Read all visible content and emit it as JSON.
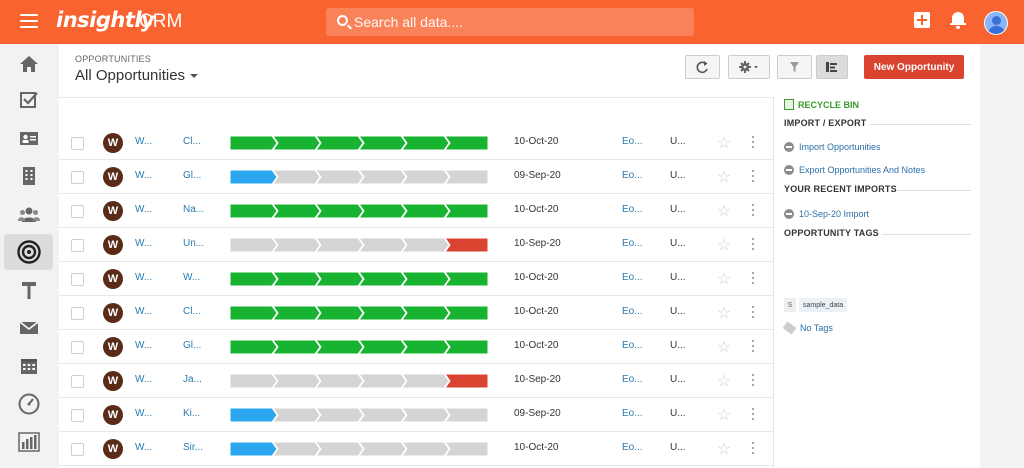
{
  "topbar": {
    "logo": "insightly",
    "app_name": "CRM",
    "search_placeholder": "Search all data...."
  },
  "sidebar": {
    "items": [
      {
        "name": "home-icon"
      },
      {
        "name": "tasks-icon"
      },
      {
        "name": "contacts-icon"
      },
      {
        "name": "organizations-icon"
      },
      {
        "name": "users-icon"
      },
      {
        "name": "opportunities-icon",
        "active": true
      },
      {
        "name": "projects-icon"
      },
      {
        "name": "email-icon"
      },
      {
        "name": "calendar-icon"
      },
      {
        "name": "dashboard-icon"
      },
      {
        "name": "reports-icon"
      }
    ]
  },
  "header": {
    "breadcrumb": "OPPORTUNITIES",
    "view_title": "All Opportunities",
    "new_button": "New Opportunity"
  },
  "rows": [
    {
      "avatar": "W",
      "col1": "W...",
      "col2": "Cl...",
      "pipeline": "won",
      "progress": 1.0,
      "date": "10-Oct-20",
      "col3": "Eo...",
      "col4": "U..."
    },
    {
      "avatar": "W",
      "col1": "W...",
      "col2": "Gl...",
      "pipeline": "open",
      "progress": 0.2,
      "date": "09-Sep-20",
      "col3": "Eo...",
      "col4": "U..."
    },
    {
      "avatar": "W",
      "col1": "W...",
      "col2": "Na...",
      "pipeline": "won",
      "progress": 1.0,
      "date": "10-Oct-20",
      "col3": "Eo...",
      "col4": "U..."
    },
    {
      "avatar": "W",
      "col1": "W...",
      "col2": "Un...",
      "pipeline": "lost",
      "progress": 1.0,
      "date": "10-Sep-20",
      "col3": "Eo...",
      "col4": "U..."
    },
    {
      "avatar": "W",
      "col1": "W...",
      "col2": "W...",
      "pipeline": "won",
      "progress": 1.0,
      "date": "10-Oct-20",
      "col3": "Eo...",
      "col4": "U..."
    },
    {
      "avatar": "W",
      "col1": "W...",
      "col2": "Cl...",
      "pipeline": "won",
      "progress": 1.0,
      "date": "10-Oct-20",
      "col3": "Eo...",
      "col4": "U..."
    },
    {
      "avatar": "W",
      "col1": "W...",
      "col2": "Gl...",
      "pipeline": "won",
      "progress": 1.0,
      "date": "10-Oct-20",
      "col3": "Eo...",
      "col4": "U..."
    },
    {
      "avatar": "W",
      "col1": "W...",
      "col2": "Ja...",
      "pipeline": "lost",
      "progress": 1.0,
      "date": "10-Sep-20",
      "col3": "Eo...",
      "col4": "U..."
    },
    {
      "avatar": "W",
      "col1": "W...",
      "col2": "Ki...",
      "pipeline": "open",
      "progress": 0.2,
      "date": "09-Sep-20",
      "col3": "Eo...",
      "col4": "U..."
    },
    {
      "avatar": "W",
      "col1": "W...",
      "col2": "Sir...",
      "pipeline": "open",
      "progress": 0.2,
      "date": "10-Oct-20",
      "col3": "Eo...",
      "col4": "U..."
    }
  ],
  "right_panel": {
    "recycle_bin": "RECYCLE BIN",
    "import_export_title": "IMPORT / EXPORT",
    "import_link": "Import Opportunities",
    "export_link": "Export Opportunities And Notes",
    "recent_imports_title": "YOUR RECENT IMPORTS",
    "recent_import": "10-Sep-20 Import",
    "tags_title": "OPPORTUNITY TAGS",
    "tag_badge": "S",
    "tag_name": "sample_data",
    "no_tags": "No Tags"
  },
  "colors": {
    "brand": "#f9632f",
    "won": "#18b331",
    "open": "#2aa7ee",
    "lost": "#d9432f",
    "stage_empty": "#d4d4d4",
    "new_button": "#d9432f"
  }
}
